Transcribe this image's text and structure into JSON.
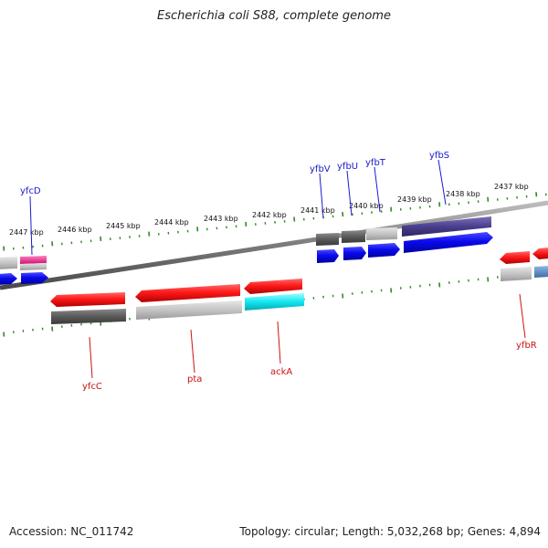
{
  "title": "Escherichia coli S88, complete genome",
  "footer": {
    "accession": "Accession: NC_011742",
    "summary": "Topology: circular; Length: 5,032,268 bp; Genes: 4,894"
  },
  "colors": {
    "backbone": "#7a7a7a",
    "tick": "#2e8b22",
    "forward_label": "#1a1acc",
    "reverse_label": "#cc1111"
  },
  "scale": {
    "labels": [
      "2447 kbp",
      "2446 kbp",
      "2445 kbp",
      "2444 kbp",
      "2443 kbp",
      "2442 kbp",
      "2441 kbp",
      "2440 kbp",
      "2439 kbp",
      "2438 kbp",
      "2437 kbp"
    ]
  },
  "genes": {
    "forward": [
      "yfcD",
      "yfbV",
      "yfbU",
      "yfbT",
      "yfbS"
    ],
    "reverse": [
      "yfcC",
      "pta",
      "ackA",
      "yfbR"
    ]
  }
}
